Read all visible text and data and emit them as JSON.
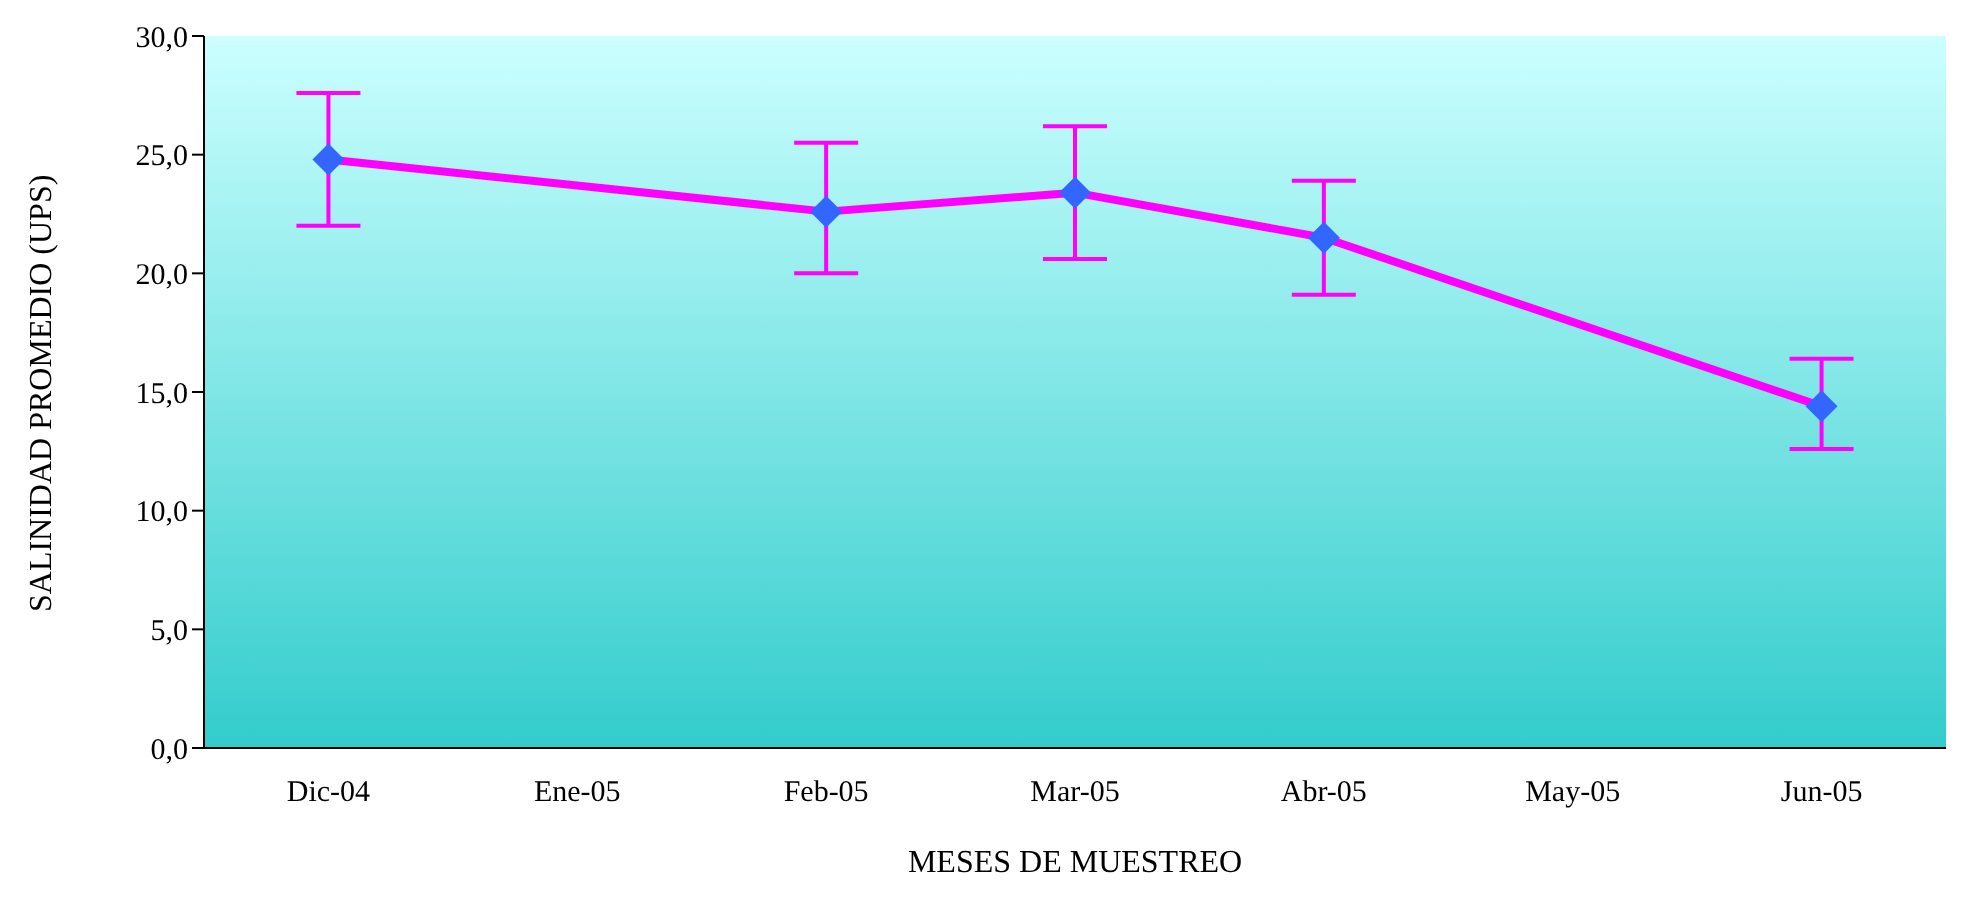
{
  "chart_data": {
    "type": "line",
    "xlabel": "MESES DE MUESTREO",
    "ylabel": "SALINIDAD PROMEDIO (UPS)",
    "categories": [
      "Dic-04",
      "Ene-05",
      "Feb-05",
      "Mar-05",
      "Abr-05",
      "May-05",
      "Jun-05"
    ],
    "series": [
      {
        "color": "#ff00ff",
        "colors": [
          "#3366ff",
          null,
          "#3366ff",
          "#3366ff",
          "#3366ff",
          null,
          "#3366ff"
        ],
        "values": [
          24.8,
          null,
          22.6,
          23.4,
          21.5,
          null,
          14.4
        ],
        "errors": [
          [
            22.0,
            27.6
          ],
          null,
          [
            20.0,
            25.5
          ],
          [
            20.6,
            26.2
          ],
          [
            19.1,
            23.9
          ],
          null,
          [
            12.6,
            16.4
          ]
        ]
      }
    ],
    "ylim": [
      0,
      30
    ],
    "yticks": [
      {
        "value": 0,
        "label": "0,0"
      },
      {
        "value": 5,
        "label": "5,0"
      },
      {
        "value": 10,
        "label": "10,0"
      },
      {
        "value": 15,
        "label": "15,0"
      },
      {
        "value": 20,
        "label": "20,0"
      },
      {
        "value": 25,
        "label": "25,0"
      },
      {
        "value": 30,
        "label": "30,0"
      }
    ],
    "grid": false,
    "legend": false,
    "marker": "diamond",
    "line_style": "solid"
  }
}
